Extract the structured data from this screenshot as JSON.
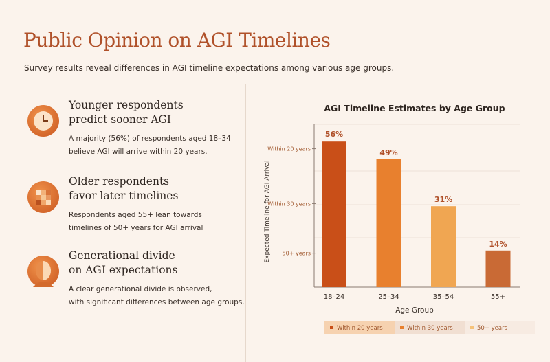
{
  "header": {
    "title": "Public Opinion on AGI Timelines",
    "subtitle": "Survey results reveal differences in AGI timeline expectations among various age groups."
  },
  "findings": [
    {
      "icon": "clock-icon",
      "heading_line1": "Younger respondents",
      "heading_line2": "predict sooner AGI",
      "body_line1": "A majority (56%) of respondents aged 18–34",
      "body_line2": "believe AGI will arrive within 20 years."
    },
    {
      "icon": "grid-blocks-icon",
      "heading_line1": "Older respondents",
      "heading_line2": "favor later timelines",
      "body_line1": "Respondents aged 55+ lean towards",
      "body_line2": "timelines of 50+ years for AGI arrival"
    },
    {
      "icon": "split-face-icon",
      "heading_line1": "Generational divide",
      "heading_line2": "on AGI expectations",
      "body_line1": "A clear generational divide is observed,",
      "body_line2": "with significant differences between age groups."
    }
  ],
  "chart_data": {
    "type": "bar",
    "title": "AGI Timeline Estimates by Age Group",
    "xlabel": "Age Group",
    "ylabel": "Expected Timeline for AGI Arrival",
    "categories": [
      "18–24",
      "25–34",
      "35–54",
      "55+"
    ],
    "values": [
      56,
      49,
      31,
      14
    ],
    "data_labels": [
      "56%",
      "49%",
      "31%",
      "14%"
    ],
    "colors": [
      "#c94f18",
      "#e8802e",
      "#f0a652",
      "#c96a35"
    ],
    "ylim": [
      0,
      60
    ],
    "y_ticks": [
      {
        "label": "Within 20 years",
        "value": 53
      },
      {
        "label": "Within 30 years",
        "value": 32
      },
      {
        "label": "50+ years",
        "value": 13
      }
    ],
    "legend": [
      {
        "label": "Within 20 years",
        "color": "#c94f18"
      },
      {
        "label": "Within 30 years",
        "color": "#e8802e"
      },
      {
        "label": "50+ years",
        "color": "#f5c27a"
      }
    ],
    "legend_position": "bottom",
    "grid": true
  }
}
